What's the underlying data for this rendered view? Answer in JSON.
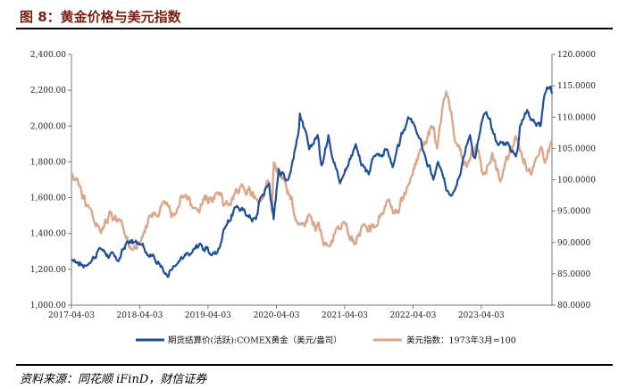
{
  "header": {
    "title": "图 8：黄金价格与美元指数"
  },
  "footer": {
    "source": "资料来源：同花顺 iFinD，财信证券"
  },
  "colors": {
    "gold": "#1f4e9a",
    "usd": "#dba78a",
    "title": "#7a1f10"
  },
  "chart_data": {
    "type": "line",
    "title": "",
    "x_ticks": [
      "2017-04-03",
      "2018-04-03",
      "2019-04-03",
      "2020-04-03",
      "2021-04-03",
      "2022-04-03",
      "2023-04-03"
    ],
    "x_range": [
      "2017-04-03",
      "2024-04-15"
    ],
    "y_left": {
      "range": [
        1000,
        2400
      ],
      "ticks": [
        "1,000.00",
        "1,200.00",
        "1,400.00",
        "1,600.00",
        "1,800.00",
        "2,000.00",
        "2,200.00",
        "2,400.00"
      ]
    },
    "y_right": {
      "range": [
        80,
        120
      ],
      "ticks": [
        "80.0000",
        "85.0000",
        "90.0000",
        "95.0000",
        "100.0000",
        "105.0000",
        "110.0000",
        "115.0000",
        "120.0000"
      ]
    },
    "legend_position": "bottom",
    "grid": false,
    "series": [
      {
        "name": "期货结算价(活跃):COMEX黄金（美元/盎司）",
        "axis": "left",
        "points": [
          [
            "2017-04-03",
            1250
          ],
          [
            "2017-07-01",
            1225
          ],
          [
            "2017-09-01",
            1320
          ],
          [
            "2017-12-10",
            1245
          ],
          [
            "2018-01-25",
            1355
          ],
          [
            "2018-04-03",
            1340
          ],
          [
            "2018-06-15",
            1280
          ],
          [
            "2018-08-16",
            1175
          ],
          [
            "2018-10-15",
            1225
          ],
          [
            "2019-01-01",
            1285
          ],
          [
            "2019-02-20",
            1345
          ],
          [
            "2019-04-20",
            1280
          ],
          [
            "2019-05-25",
            1300
          ],
          [
            "2019-06-25",
            1420
          ],
          [
            "2019-09-04",
            1555
          ],
          [
            "2019-10-30",
            1500
          ],
          [
            "2019-12-15",
            1480
          ],
          [
            "2020-01-08",
            1600
          ],
          [
            "2020-02-24",
            1680
          ],
          [
            "2020-03-19",
            1480
          ],
          [
            "2020-04-15",
            1760
          ],
          [
            "2020-06-05",
            1700
          ],
          [
            "2020-07-28",
            1950
          ],
          [
            "2020-08-06",
            2070
          ],
          [
            "2020-09-25",
            1870
          ],
          [
            "2020-11-09",
            1950
          ],
          [
            "2020-11-30",
            1780
          ],
          [
            "2021-01-06",
            1950
          ],
          [
            "2021-03-08",
            1680
          ],
          [
            "2021-06-01",
            1900
          ],
          [
            "2021-07-01",
            1780
          ],
          [
            "2021-08-09",
            1730
          ],
          [
            "2021-09-05",
            1830
          ],
          [
            "2021-11-16",
            1870
          ],
          [
            "2021-12-15",
            1770
          ],
          [
            "2022-03-08",
            2050
          ],
          [
            "2022-04-18",
            1980
          ],
          [
            "2022-06-01",
            1850
          ],
          [
            "2022-07-21",
            1700
          ],
          [
            "2022-08-15",
            1800
          ],
          [
            "2022-09-28",
            1640
          ],
          [
            "2022-11-03",
            1630
          ],
          [
            "2022-12-30",
            1830
          ],
          [
            "2023-02-01",
            1950
          ],
          [
            "2023-02-28",
            1820
          ],
          [
            "2023-04-13",
            2050
          ],
          [
            "2023-05-04",
            2060
          ],
          [
            "2023-06-29",
            1900
          ],
          [
            "2023-08-20",
            1910
          ],
          [
            "2023-10-05",
            1830
          ],
          [
            "2023-10-27",
            2000
          ],
          [
            "2023-12-04",
            2090
          ],
          [
            "2024-01-15",
            2020
          ],
          [
            "2024-02-14",
            2000
          ],
          [
            "2024-03-08",
            2180
          ],
          [
            "2024-04-08",
            2220
          ],
          [
            "2024-04-15",
            2180
          ]
        ]
      },
      {
        "name": "美元指数：1973年3月=100",
        "axis": "right",
        "points": [
          [
            "2017-04-03",
            101
          ],
          [
            "2017-05-20",
            99
          ],
          [
            "2017-07-01",
            96
          ],
          [
            "2017-09-08",
            91.5
          ],
          [
            "2017-10-25",
            95
          ],
          [
            "2017-12-15",
            93.5
          ],
          [
            "2018-02-15",
            89
          ],
          [
            "2018-04-03",
            89.8
          ],
          [
            "2018-05-25",
            94.3
          ],
          [
            "2018-08-15",
            96.5
          ],
          [
            "2018-09-20",
            94
          ],
          [
            "2018-11-12",
            97.5
          ],
          [
            "2019-01-15",
            95.5
          ],
          [
            "2019-05-30",
            98
          ],
          [
            "2019-06-25",
            95.8
          ],
          [
            "2019-10-01",
            99.3
          ],
          [
            "2019-12-31",
            96.3
          ],
          [
            "2020-02-19",
            99.8
          ],
          [
            "2020-03-09",
            94.9
          ],
          [
            "2020-03-20",
            102.8
          ],
          [
            "2020-05-15",
            100
          ],
          [
            "2020-07-30",
            92.9
          ],
          [
            "2020-09-25",
            94.5
          ],
          [
            "2021-01-06",
            89.4
          ],
          [
            "2021-03-31",
            93.3
          ],
          [
            "2021-05-25",
            89.7
          ],
          [
            "2021-07-15",
            92.9
          ],
          [
            "2021-09-15",
            92.5
          ],
          [
            "2021-11-24",
            96.9
          ],
          [
            "2022-01-15",
            94.7
          ],
          [
            "2022-03-08",
            99.1
          ],
          [
            "2022-05-12",
            104.8
          ],
          [
            "2022-07-14",
            108.5
          ],
          [
            "2022-08-10",
            105
          ],
          [
            "2022-09-28",
            114.1
          ],
          [
            "2022-11-15",
            106
          ],
          [
            "2023-01-15",
            102
          ],
          [
            "2023-03-08",
            105.6
          ],
          [
            "2023-04-14",
            100.8
          ],
          [
            "2023-05-31",
            104.3
          ],
          [
            "2023-07-14",
            99.7
          ],
          [
            "2023-10-03",
            107
          ],
          [
            "2023-12-27",
            100.8
          ],
          [
            "2024-02-14",
            104.9
          ],
          [
            "2024-03-08",
            102.7
          ],
          [
            "2024-04-15",
            106.2
          ]
        ]
      }
    ]
  }
}
